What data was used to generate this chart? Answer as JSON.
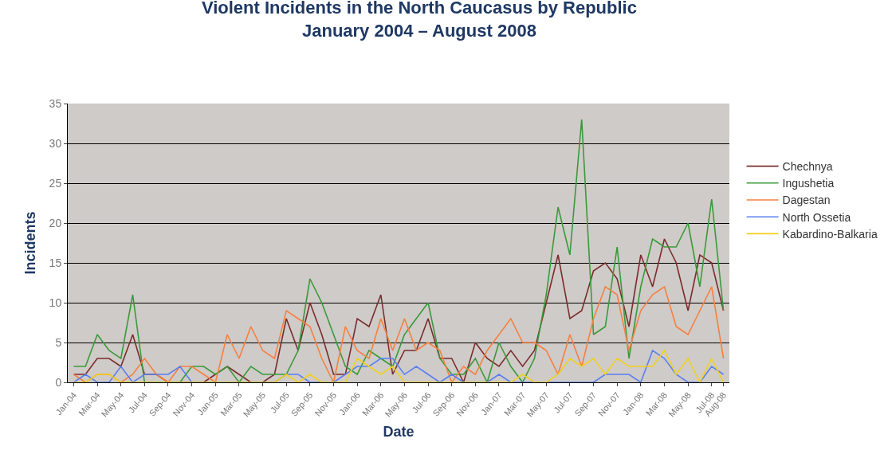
{
  "chart_data": {
    "type": "line",
    "title": "Violent Incidents in the North Caucasus by Republic",
    "subtitle": "January 2004 – August 2008",
    "xlabel": "Date",
    "ylabel": "Incidents",
    "categories": [
      "Jan-04",
      null,
      "Mar-04",
      null,
      "May-04",
      null,
      "Jul-04",
      null,
      "Sep-04",
      null,
      "Nov-04",
      null,
      "Jan-05",
      null,
      "Mar-05",
      null,
      "May-05",
      null,
      "Jul-05",
      null,
      "Sep-05",
      null,
      "Nov-05",
      null,
      "Jan-06",
      null,
      "Mar-06",
      null,
      "May-06",
      null,
      "Jul-06",
      null,
      "Sep-06",
      null,
      "Nov-06",
      null,
      "Jan-07",
      null,
      "Mar-07",
      null,
      "May-07",
      null,
      "Jul-07",
      null,
      "Sep-07",
      null,
      "Nov-07",
      null,
      "Jan-08",
      null,
      "Mar-08",
      null,
      "May-08",
      null,
      "Jul-08",
      "Aug-08"
    ],
    "series": [
      {
        "name": "Chechnya",
        "color": "#7b2c2c",
        "values": [
          1,
          1,
          3,
          3,
          2,
          6,
          1,
          1,
          0,
          0,
          0,
          0,
          1,
          2,
          1,
          0,
          0,
          1,
          8,
          4,
          10,
          6,
          1,
          1,
          8,
          7,
          11,
          1,
          4,
          4,
          8,
          3,
          3,
          0,
          5,
          3,
          2,
          4,
          2,
          4,
          10,
          16,
          8,
          9,
          14,
          15,
          13,
          7,
          16,
          12,
          18,
          15,
          9,
          16,
          15,
          9
        ]
      },
      {
        "name": "Ingushetia",
        "color": "#3a9a3a",
        "values": [
          2,
          2,
          6,
          4,
          3,
          11,
          0,
          0,
          0,
          0,
          2,
          2,
          1,
          2,
          0,
          2,
          1,
          1,
          1,
          4,
          13,
          10,
          6,
          2,
          1,
          4,
          3,
          2,
          6,
          8,
          10,
          3,
          1,
          1,
          3,
          0,
          5,
          2,
          0,
          3,
          11,
          22,
          16,
          33,
          6,
          7,
          17,
          3,
          12,
          18,
          17,
          17,
          20,
          12,
          23,
          9
        ]
      },
      {
        "name": "Dagestan",
        "color": "#f58040",
        "values": [
          1,
          0,
          1,
          1,
          0,
          1,
          3,
          1,
          0,
          2,
          2,
          1,
          0,
          6,
          3,
          7,
          4,
          3,
          9,
          8,
          7,
          3,
          0,
          7,
          4,
          3,
          8,
          4,
          8,
          4,
          5,
          4,
          0,
          2,
          1,
          4,
          6,
          8,
          5,
          5,
          4,
          1,
          6,
          2,
          8,
          12,
          11,
          4,
          9,
          11,
          12,
          7,
          6,
          9,
          12,
          3
        ]
      },
      {
        "name": "North Ossetia",
        "color": "#5b7ff0",
        "values": [
          0,
          1,
          0,
          0,
          2,
          0,
          1,
          1,
          1,
          2,
          0,
          0,
          0,
          0,
          0,
          0,
          0,
          0,
          1,
          1,
          0,
          0,
          0,
          1,
          2,
          2,
          3,
          3,
          1,
          2,
          1,
          0,
          1,
          0,
          0,
          0,
          1,
          0,
          0,
          0,
          0,
          0,
          0,
          0,
          0,
          1,
          1,
          1,
          0,
          4,
          3,
          1,
          0,
          0,
          2,
          1
        ]
      },
      {
        "name": "Kabardino-Balkaria",
        "color": "#f0d020",
        "values": [
          0,
          0,
          1,
          1,
          0,
          0,
          0,
          0,
          0,
          0,
          0,
          0,
          0,
          0,
          0,
          0,
          0,
          0,
          1,
          0,
          1,
          0,
          0,
          0,
          3,
          2,
          1,
          2,
          0,
          0,
          0,
          0,
          0,
          0,
          0,
          0,
          0,
          0,
          1,
          0,
          0,
          1,
          3,
          2,
          3,
          1,
          3,
          2,
          2,
          2,
          4,
          1,
          3,
          0,
          3,
          0
        ]
      }
    ],
    "ylim": [
      0,
      35
    ],
    "yticks": [
      0,
      5,
      10,
      15,
      20,
      25,
      30,
      35
    ],
    "grid": "y",
    "legend": "right",
    "marker": "none",
    "line_style": "solid"
  }
}
